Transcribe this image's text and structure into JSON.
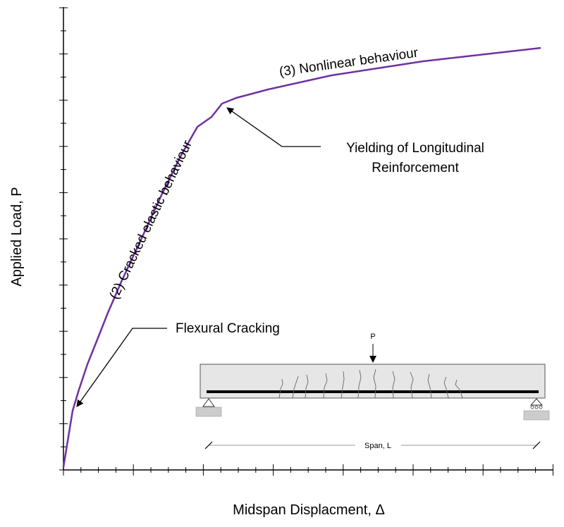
{
  "axes": {
    "xlabel": "Midspan Displacment, Δ",
    "ylabel": "Applied Load, P"
  },
  "annotations": {
    "stage2": "(2) Cracked elastic behaviour",
    "stage3": "(3) Nonlinear behaviour",
    "yielding_line1": "Yielding of Longitudinal",
    "yielding_line2": "Reinforcement",
    "cracking": "Flexural Cracking"
  },
  "beam": {
    "load_label": "P",
    "span_label": "Span, L"
  },
  "colors": {
    "curve": "#7030a0",
    "axis": "#000000",
    "beam_fill": "#e6e6e6",
    "support_fill": "#cccccc"
  }
}
